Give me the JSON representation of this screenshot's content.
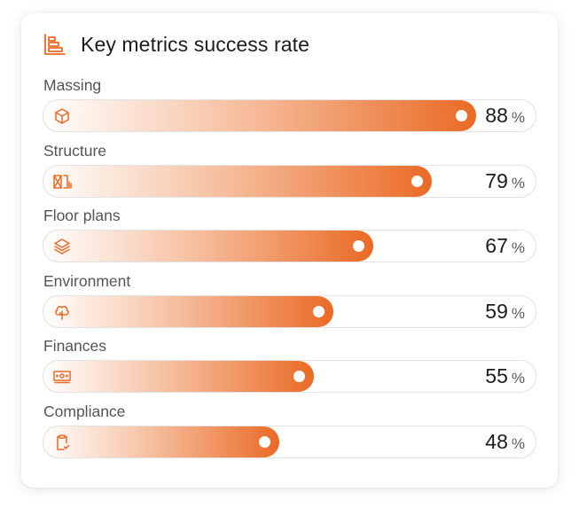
{
  "card": {
    "title": "Key metrics success rate",
    "icon": "bar-chart-icon"
  },
  "colors": {
    "accent": "#ea6a25",
    "text": "#1d1d1f",
    "label": "#555559",
    "track_border": "#e2e2e4"
  },
  "metrics": [
    {
      "label": "Massing",
      "value": "88",
      "unit": "%",
      "percent": 88,
      "icon": "cube-icon"
    },
    {
      "label": "Structure",
      "value": "79",
      "unit": "%",
      "percent": 79,
      "icon": "structure-icon"
    },
    {
      "label": "Floor plans",
      "value": "67",
      "unit": "%",
      "percent": 67,
      "icon": "layers-icon"
    },
    {
      "label": "Environment",
      "value": "59",
      "unit": "%",
      "percent": 59,
      "icon": "tree-icon"
    },
    {
      "label": "Finances",
      "value": "55",
      "unit": "%",
      "percent": 55,
      "icon": "money-icon"
    },
    {
      "label": "Compliance",
      "value": "48",
      "unit": "%",
      "percent": 48,
      "icon": "clipboard-check-icon"
    }
  ]
}
